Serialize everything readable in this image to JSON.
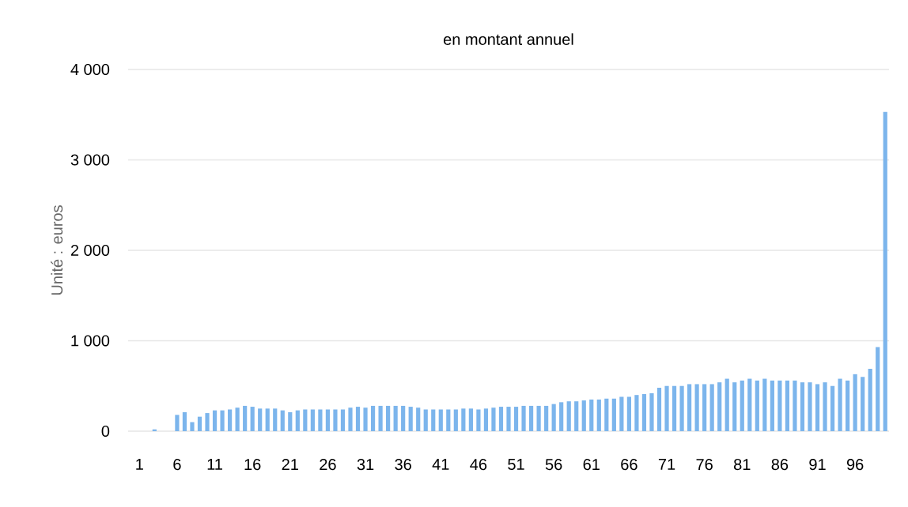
{
  "chart_data": {
    "type": "bar",
    "title": "en montant annuel",
    "ylabel": "Unité : euros",
    "color": "#7cb5ec",
    "grid": "y",
    "categories": [
      "1",
      null,
      null,
      null,
      null,
      "6",
      null,
      null,
      null,
      null,
      "11",
      null,
      null,
      null,
      null,
      "16",
      null,
      null,
      null,
      null,
      "21",
      null,
      null,
      null,
      null,
      "26",
      null,
      null,
      null,
      null,
      "31",
      null,
      null,
      null,
      null,
      "36",
      null,
      null,
      null,
      null,
      "41",
      null,
      null,
      null,
      null,
      "46",
      null,
      null,
      null,
      null,
      "51",
      null,
      null,
      null,
      null,
      "56",
      null,
      null,
      null,
      null,
      "61",
      null,
      null,
      null,
      null,
      "66",
      null,
      null,
      null,
      null,
      "71",
      null,
      null,
      null,
      null,
      "76",
      null,
      null,
      null,
      null,
      "81",
      null,
      null,
      null,
      null,
      "86",
      null,
      null,
      null,
      null,
      "91",
      null,
      null,
      null,
      null,
      "96",
      null,
      null,
      null,
      null
    ],
    "values": [
      0,
      0,
      20,
      0,
      0,
      180,
      210,
      100,
      160,
      200,
      230,
      230,
      240,
      260,
      280,
      270,
      250,
      250,
      250,
      230,
      210,
      230,
      240,
      240,
      240,
      240,
      240,
      240,
      260,
      270,
      260,
      280,
      280,
      280,
      280,
      280,
      270,
      260,
      240,
      240,
      240,
      240,
      240,
      250,
      250,
      240,
      250,
      260,
      270,
      270,
      270,
      280,
      280,
      280,
      280,
      300,
      320,
      330,
      330,
      340,
      350,
      350,
      360,
      360,
      380,
      380,
      400,
      410,
      420,
      480,
      500,
      500,
      500,
      520,
      520,
      520,
      520,
      540,
      580,
      540,
      560,
      580,
      560,
      580,
      560,
      560,
      560,
      560,
      540,
      540,
      520,
      540,
      500,
      580,
      560,
      630,
      600,
      690,
      930,
      3530
    ],
    "ylim": [
      0,
      4000
    ],
    "yticks": [
      {
        "value": 0,
        "label": "0"
      },
      {
        "value": 1000,
        "label": "1 000"
      },
      {
        "value": 2000,
        "label": "2 000"
      },
      {
        "value": 3000,
        "label": "3 000"
      },
      {
        "value": 4000,
        "label": "4 000"
      }
    ]
  }
}
